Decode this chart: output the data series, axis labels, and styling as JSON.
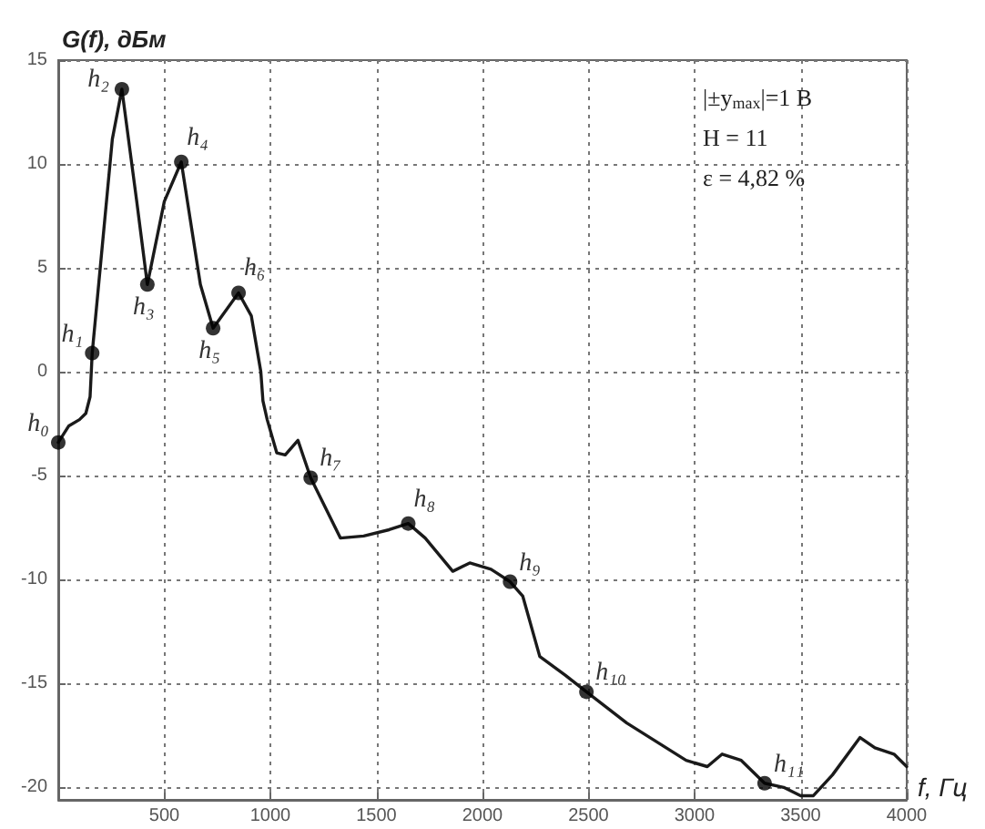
{
  "chart_data": {
    "type": "line",
    "xlabel": "f, Гц",
    "ylabel": "G(f), дБм",
    "xlim": [
      0,
      4000
    ],
    "xticks": [
      500,
      1000,
      1500,
      2000,
      2500,
      3000,
      3500,
      4000
    ],
    "ylim": [
      -20.6,
      15
    ],
    "yticks": [
      -20,
      -15,
      -10,
      -5,
      0,
      5,
      10,
      15
    ],
    "grid": true,
    "series": [
      {
        "type": "line",
        "color": "#1a1a1a",
        "marker": "none",
        "line_style": "solid",
        "x": [
          0,
          50,
          100,
          130,
          150,
          160,
          255,
          300,
          370,
          420,
          500,
          580,
          670,
          730,
          850,
          910,
          955,
          965,
          985,
          1030,
          1070,
          1130,
          1160,
          1190,
          1330,
          1440,
          1560,
          1650,
          1730,
          1860,
          1940,
          2040,
          2070,
          2130,
          2190,
          2270,
          2390,
          2490,
          2680,
          2820,
          2960,
          3060,
          3130,
          3220,
          3330,
          3420,
          3500,
          3560,
          3650,
          3780,
          3850,
          3940,
          4000
        ],
        "values": [
          -3.4,
          -2.6,
          -2.3,
          -2.0,
          -1.2,
          0.9,
          11.2,
          13.6,
          8.2,
          4.2,
          8.2,
          10.1,
          4.2,
          2.1,
          3.8,
          2.7,
          0,
          -1.4,
          -2.3,
          -3.9,
          -4.0,
          -3.3,
          -4.2,
          -5.1,
          -8.0,
          -7.9,
          -7.6,
          -7.3,
          -8.0,
          -9.6,
          -9.2,
          -9.5,
          -9.7,
          -10.1,
          -10.8,
          -13.7,
          -14.6,
          -15.4,
          -16.9,
          -17.8,
          -18.7,
          -19.0,
          -18.4,
          -18.7,
          -19.8,
          -20.0,
          -20.4,
          -20.4,
          -19.4,
          -17.6,
          -18.1,
          -18.4,
          -19.0
        ]
      },
      {
        "type": "scatter",
        "color": "#000000",
        "marker": "circle",
        "x": [
          0,
          160,
          300,
          420,
          580,
          730,
          850,
          1190,
          1650,
          2130,
          2490,
          3330
        ],
        "values": [
          -3.4,
          0.9,
          13.6,
          4.2,
          10.1,
          2.1,
          3.8,
          -5.1,
          -7.3,
          -10.1,
          -15.4,
          -19.8
        ]
      }
    ],
    "annotations": [
      {
        "text": "h₀",
        "x": 0,
        "y": -3.4
      },
      {
        "text": "h₁",
        "x": 160,
        "y": 0.9
      },
      {
        "text": "h₂",
        "x": 300,
        "y": 13.6
      },
      {
        "text": "h₃",
        "x": 420,
        "y": 4.2
      },
      {
        "text": "h₄",
        "x": 580,
        "y": 10.1
      },
      {
        "text": "h₅",
        "x": 730,
        "y": 2.1
      },
      {
        "text": "h₆",
        "x": 850,
        "y": 3.8
      },
      {
        "text": "h₇",
        "x": 1190,
        "y": -5.1
      },
      {
        "text": "h₈",
        "x": 1650,
        "y": -7.3
      },
      {
        "text": "h₉",
        "x": 2130,
        "y": -10.1
      },
      {
        "text": "h₁₀",
        "x": 2490,
        "y": -15.4
      },
      {
        "text": "h₁₁",
        "x": 3330,
        "y": -19.8
      },
      "|±y$_{max}$|=1 В",
      "H = 11",
      "ε = 4,82 %"
    ]
  }
}
